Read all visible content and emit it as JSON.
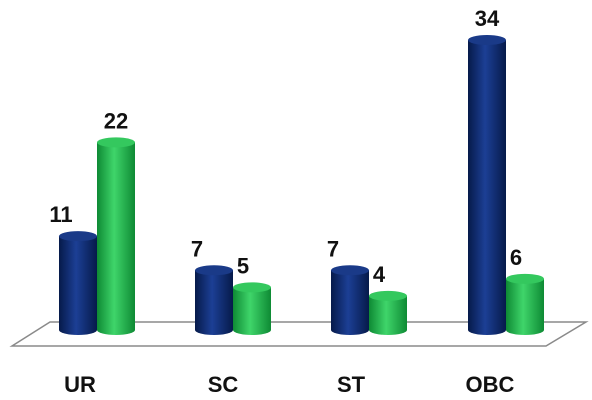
{
  "chart_data": {
    "type": "bar",
    "style": "3d-cylinder",
    "categories": [
      "UR",
      "SC",
      "ST",
      "OBC"
    ],
    "series": [
      {
        "values": [
          11,
          7,
          7,
          34
        ],
        "color": "#0b2a6e"
      },
      {
        "values": [
          22,
          5,
          4,
          6
        ],
        "color": "#1fb34a"
      }
    ],
    "data_labels": true,
    "ylim": [
      0,
      34
    ],
    "grid": false,
    "legend": "none",
    "title": "",
    "xlabel": "",
    "ylabel": ""
  }
}
